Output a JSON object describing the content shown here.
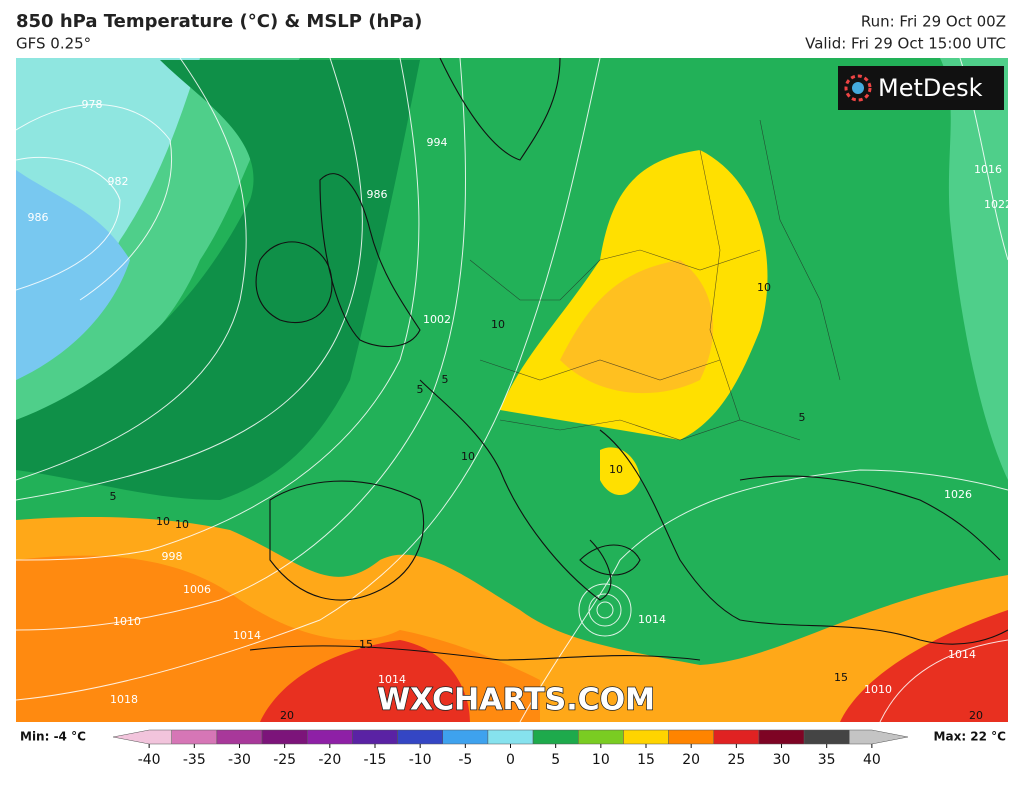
{
  "header": {
    "title": "850 hPa Temperature (°C) & MSLP (hPa)",
    "subtitle": "GFS 0.25°",
    "run": "Run: Fri 29 Oct 00Z",
    "valid": "Valid: Fri 29 Oct 15:00 UTC"
  },
  "logo": "MetDesk",
  "watermark": "WXCHARTS.COM",
  "map_labels": {
    "isobars": [
      978,
      982,
      986,
      994,
      986,
      1002,
      998,
      1006,
      1010,
      1014,
      1018,
      1014,
      1014,
      1010,
      1014,
      1016,
      1022,
      1026
    ],
    "temperature": [
      10,
      10,
      5,
      5,
      10,
      10,
      5,
      10,
      10,
      5,
      15,
      15,
      20,
      20
    ]
  },
  "legend": {
    "min": "Min: -4 °C",
    "max": "Max: 22 °C",
    "lim": [
      -44,
      44
    ],
    "ticks": [
      -40,
      -35,
      -30,
      -25,
      -20,
      -15,
      -10,
      -5,
      0,
      5,
      10,
      15,
      20,
      25,
      30,
      35,
      40
    ],
    "colors": [
      "#f2c4dc",
      "#d676b6",
      "#a8389a",
      "#7c147a",
      "#8e20a6",
      "#5a22a4",
      "#3446c4",
      "#3ea2ee",
      "#86e2ee",
      "#1eaa4c",
      "#7acc22",
      "#ffd400",
      "#ff8400",
      "#e02222",
      "#7e0424",
      "#444444",
      "#c4c4c4"
    ]
  }
}
